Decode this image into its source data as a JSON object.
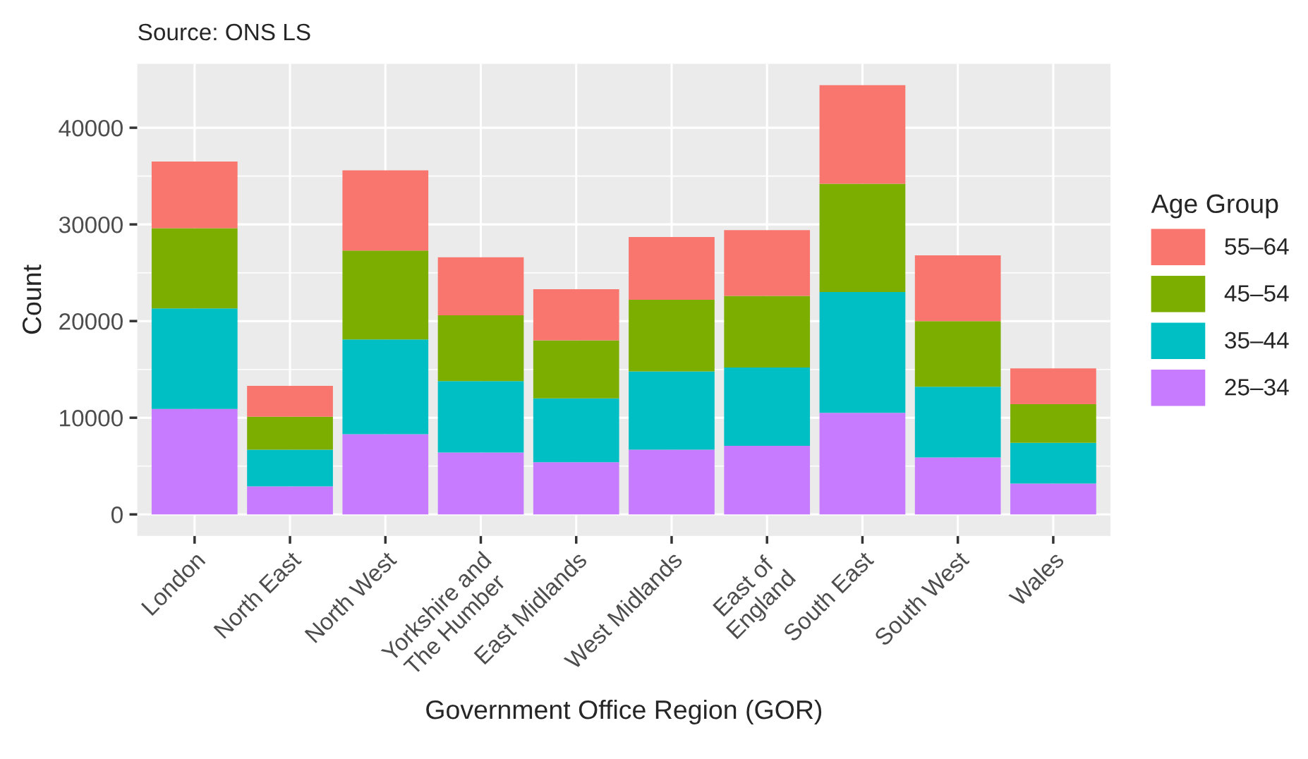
{
  "chart_data": {
    "type": "bar",
    "stacked": true,
    "annotations": [
      "Source: ONS LS"
    ],
    "xlabel": "Government Office Region (GOR)",
    "ylabel": "Count",
    "legend_title": "Age Group",
    "categories": [
      "London",
      "North East",
      "North West",
      "Yorkshire and\nThe Humber",
      "East Midlands",
      "West Midlands",
      "East of\nEngland",
      "South East",
      "South West",
      "Wales"
    ],
    "series": [
      {
        "name": "25–34",
        "color": "#c77cff",
        "values": [
          10900,
          2900,
          8300,
          6400,
          5400,
          6700,
          7100,
          10500,
          5900,
          3200
        ]
      },
      {
        "name": "35–44",
        "color": "#00bfc4",
        "values": [
          10400,
          3800,
          9800,
          7400,
          6600,
          8100,
          8100,
          12500,
          7300,
          4200
        ]
      },
      {
        "name": "45–54",
        "color": "#7cae00",
        "values": [
          8300,
          3400,
          9200,
          6800,
          6000,
          7400,
          7400,
          11200,
          6800,
          4000
        ]
      },
      {
        "name": "55–64",
        "color": "#f8766d",
        "values": [
          6900,
          3200,
          8300,
          6000,
          5300,
          6500,
          6800,
          10200,
          6800,
          3700
        ]
      }
    ],
    "ylim": [
      -2220,
      46620
    ],
    "yticks": [
      0,
      10000,
      20000,
      30000,
      40000
    ],
    "grid": true,
    "legend": "right"
  }
}
